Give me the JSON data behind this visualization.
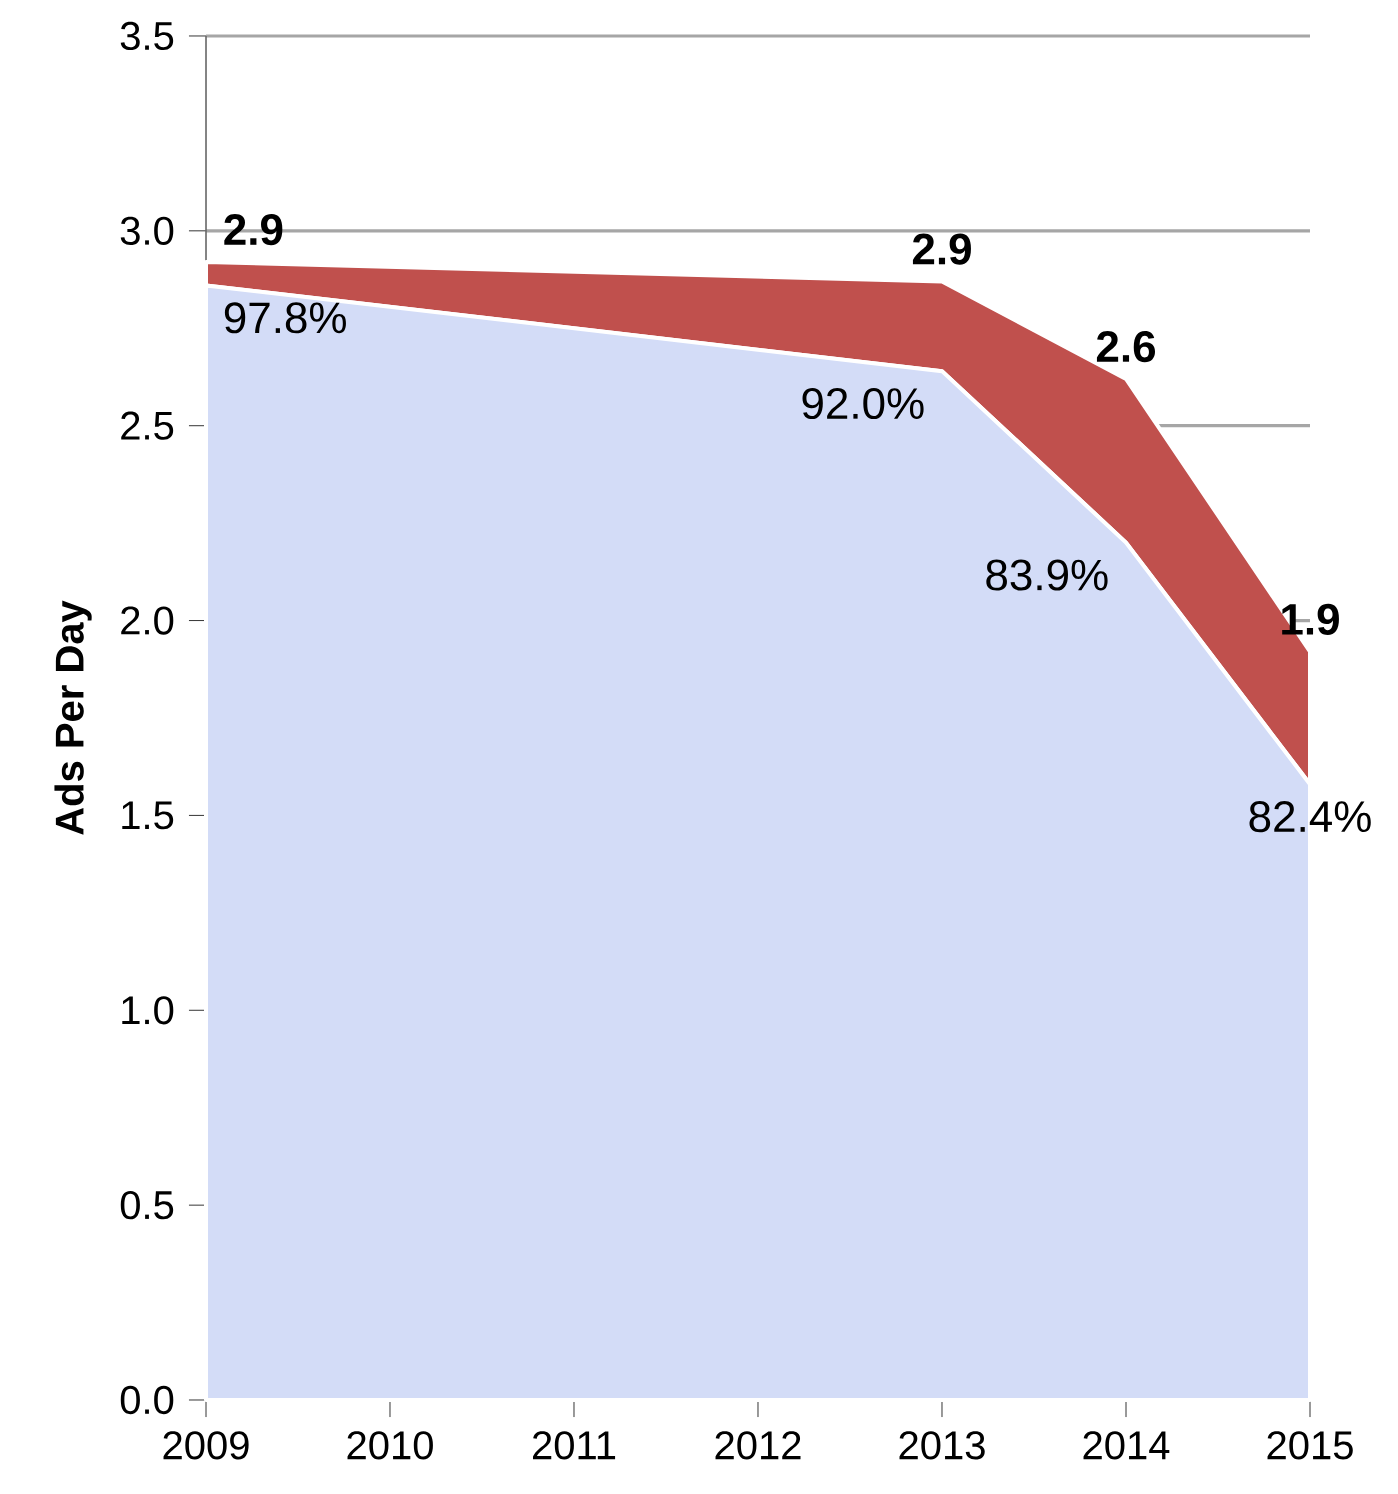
{
  "chart_data": {
    "type": "area",
    "stacked": true,
    "ylabel": "Ads Per Day",
    "x": [
      2009,
      2013,
      2014,
      2015
    ],
    "series": [
      {
        "color": "#d3dcf7",
        "values": [
          2.86,
          2.64,
          2.2,
          1.58
        ]
      },
      {
        "color": "#c0504d",
        "values": [
          0.06,
          0.23,
          0.42,
          0.34
        ]
      }
    ],
    "totals": [
      "2.9",
      "2.9",
      "2.6",
      "1.9"
    ],
    "annotations": [
      {
        "text": "97.8%",
        "x": 2009,
        "y": 2.86
      },
      {
        "text": "92.0%",
        "x": 2013,
        "y": 2.64
      },
      {
        "text": "83.9%",
        "x": 2014,
        "y": 2.2
      },
      {
        "text": "82.4%",
        "x": 2015,
        "y": 1.58
      }
    ],
    "xlim": [
      2009,
      2015
    ],
    "xticks": [
      2009,
      2010,
      2011,
      2012,
      2013,
      2014,
      2015
    ],
    "ylim": [
      0,
      3.5
    ],
    "yticks": [
      {
        "value": 0,
        "label": "0.0"
      },
      {
        "value": 0.5,
        "label": "0.5"
      },
      {
        "value": 1,
        "label": "1.0"
      },
      {
        "value": 1.5,
        "label": "1.5"
      },
      {
        "value": 2,
        "label": "2.0"
      },
      {
        "value": 2.5,
        "label": "2.5"
      },
      {
        "value": 3,
        "label": "3.0"
      },
      {
        "value": 3.5,
        "label": "3.5"
      }
    ],
    "grid": "y"
  }
}
